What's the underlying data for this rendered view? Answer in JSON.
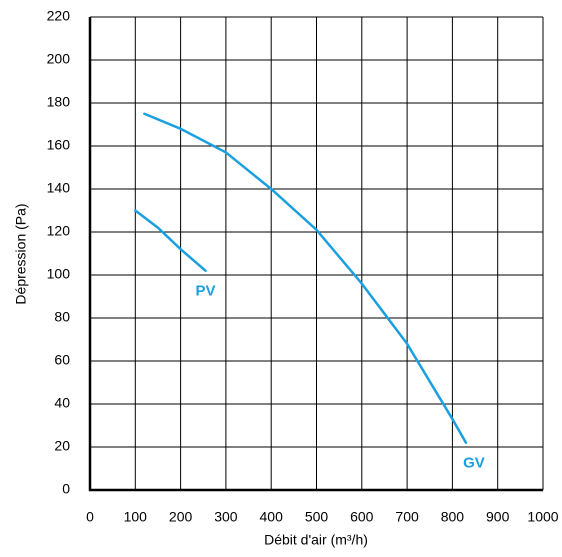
{
  "chart_data": {
    "type": "line",
    "x_label": "Débit d'air (m³/h)",
    "y_label": "Dépression (Pa)",
    "xlim": [
      0,
      1000
    ],
    "xticks": [
      0,
      100,
      200,
      300,
      400,
      500,
      600,
      700,
      800,
      900,
      1000
    ],
    "ylim": [
      0,
      220
    ],
    "yticks": [
      0,
      20,
      40,
      60,
      80,
      100,
      120,
      140,
      160,
      180,
      200,
      220
    ],
    "grid": true,
    "series": [
      {
        "name": "PV",
        "color": "#1a9fe0",
        "x": [
          100,
          150,
          200,
          255
        ],
        "values": [
          130,
          122,
          112,
          102
        ]
      },
      {
        "name": "GV",
        "color": "#1a9fe0",
        "x": [
          120,
          200,
          300,
          400,
          500,
          600,
          700,
          800,
          830
        ],
        "values": [
          175,
          168,
          157,
          140,
          121,
          96,
          68,
          33,
          22
        ]
      }
    ]
  }
}
